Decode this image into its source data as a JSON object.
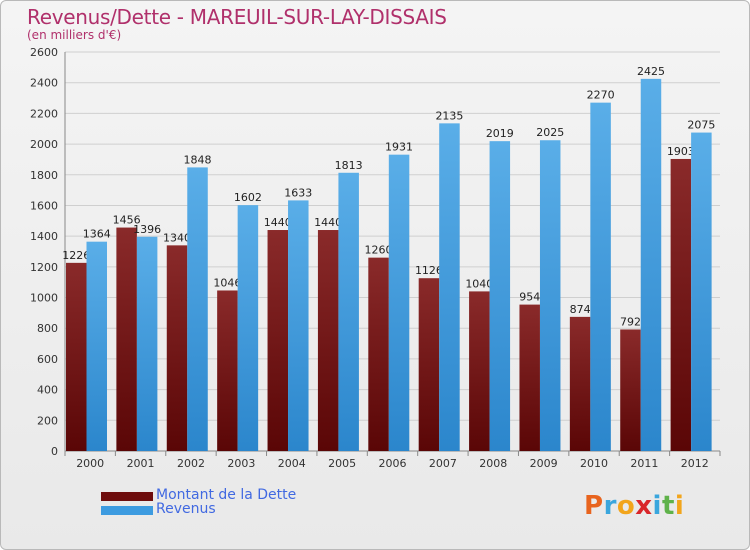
{
  "title": "Revenus/Dette - MAREUIL-SUR-LAY-DISSAIS",
  "subtitle": "(en milliers d'€)",
  "colors": {
    "dette": "#7b1a1a",
    "revenus": "#3d9be0",
    "grid": "#cfcfcf",
    "axis_text": "#333333"
  },
  "legend": [
    {
      "label": "Montant de la Dette",
      "color": "#6e0d0d"
    },
    {
      "label": "Revenus",
      "color": "#3d9be0"
    }
  ],
  "logo": {
    "letters": [
      "P",
      "r",
      "o",
      "x",
      "i",
      "t",
      "i"
    ],
    "colors": [
      "#e8641e",
      "#3aa6dd",
      "#f2a51c",
      "#d9262a",
      "#3aa6dd",
      "#5fb24a",
      "#f2a51c"
    ]
  },
  "chart_data": {
    "type": "bar",
    "categories": [
      "2000",
      "2001",
      "2002",
      "2003",
      "2004",
      "2005",
      "2006",
      "2007",
      "2008",
      "2009",
      "2010",
      "2011",
      "2012"
    ],
    "series": [
      {
        "name": "Montant de la Dette",
        "values": [
          1226,
          1456,
          1340,
          1046,
          1440,
          1440,
          1260,
          1126,
          1040,
          954,
          874,
          792,
          1903
        ]
      },
      {
        "name": "Revenus",
        "values": [
          1364,
          1396,
          1848,
          1602,
          1633,
          1813,
          1931,
          2135,
          2019,
          2025,
          2270,
          2425,
          2075
        ]
      }
    ],
    "ylim": [
      0,
      2600
    ],
    "yticks": [
      0,
      200,
      400,
      600,
      800,
      1000,
      1200,
      1400,
      1600,
      1800,
      2000,
      2200,
      2400,
      2600
    ],
    "grid": true,
    "legend_position": "bottom-left"
  }
}
